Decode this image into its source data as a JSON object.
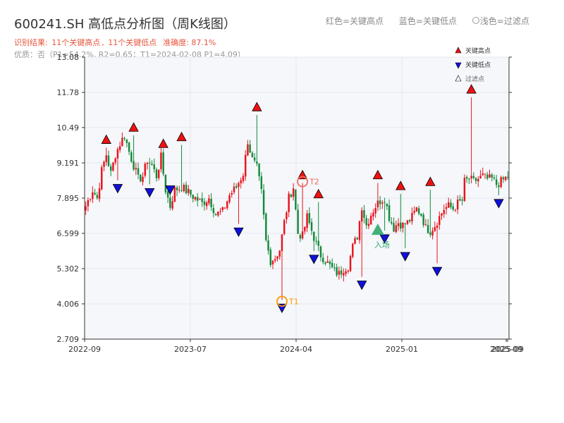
{
  "header": {
    "title": "600241.SH 高低点分析图（周K线图）",
    "summary_prefix": "识别结果: ",
    "summary_highs": "11个关键高点",
    "summary_sep": ", ",
    "summary_lows": "11个关键低点",
    "summary_accuracy": "准确度: 87.1%",
    "quality": "优质：否（P1=54.2%, R2=0.65；T1=2024-02-08 P1=4.09）"
  },
  "top_legend": {
    "red": "红色=关键高点",
    "blue": "蓝色=关键低点",
    "light": "浅色=过滤点"
  },
  "colors": {
    "up": "#e8141e",
    "down": "#138a3b",
    "high_marker": "#ee1111",
    "low_marker": "#1010dd",
    "plot_bg": "#f5f7fa",
    "axis": "#333333",
    "grid": "#e4e7ec",
    "t1": "#ff9800",
    "t2": "#f26b5b",
    "entry": "#2eaa6c"
  },
  "chart_data": {
    "type": "candlestick",
    "title": "600241.SH 高低点分析图（周K线图）",
    "ylim": [
      2.709,
      13.08
    ],
    "yticks": [
      "2.709",
      "4.006",
      "5.302",
      "6.599",
      "7.895",
      "9.191",
      "10.49",
      "11.78",
      "13.08"
    ],
    "xticks": [
      "2022-09",
      "2023-07",
      "2024-04",
      "2025-01",
      "2025-09",
      "2025-09"
    ],
    "grid": true,
    "legend": {
      "position": "top-right",
      "items": [
        {
          "label": "关键高点",
          "symbol": "triangle-up",
          "color": "#ee1111"
        },
        {
          "label": "关键低点",
          "symbol": "triangle-down",
          "color": "#1010dd"
        },
        {
          "label": "过滤点",
          "symbol": "triangle-up-outline",
          "color": "#ffffff"
        }
      ]
    },
    "control_points": [
      [
        0,
        7.6
      ],
      [
        3,
        8.2
      ],
      [
        5,
        7.9
      ],
      [
        7,
        8.9
      ],
      [
        9,
        9.5
      ],
      [
        11,
        8.8
      ],
      [
        13,
        9.5
      ],
      [
        15,
        9.9
      ],
      [
        17,
        10.2
      ],
      [
        19,
        9.6
      ],
      [
        21,
        9.1
      ],
      [
        23,
        8.6
      ],
      [
        25,
        8.7
      ],
      [
        27,
        9.3
      ],
      [
        29,
        9.1
      ],
      [
        31,
        8.7
      ],
      [
        33,
        9.4
      ],
      [
        35,
        8.2
      ],
      [
        37,
        7.6
      ],
      [
        39,
        8.2
      ],
      [
        42,
        8.3
      ],
      [
        45,
        8.1
      ],
      [
        48,
        7.9
      ],
      [
        51,
        7.7
      ],
      [
        54,
        7.9
      ],
      [
        57,
        7.3
      ],
      [
        60,
        7.4
      ],
      [
        63,
        8.0
      ],
      [
        66,
        8.3
      ],
      [
        69,
        8.8
      ],
      [
        71,
        10.0
      ],
      [
        73,
        9.3
      ],
      [
        75,
        9.0
      ],
      [
        77,
        8.1
      ],
      [
        79,
        6.3
      ],
      [
        81,
        5.6
      ],
      [
        83,
        5.7
      ],
      [
        85,
        6.0
      ],
      [
        87,
        7.0
      ],
      [
        89,
        7.9
      ],
      [
        91,
        8.3
      ],
      [
        93,
        6.6
      ],
      [
        95,
        6.5
      ],
      [
        97,
        7.2
      ],
      [
        99,
        6.7
      ],
      [
        101,
        6.2
      ],
      [
        103,
        5.8
      ],
      [
        105,
        5.6
      ],
      [
        107,
        5.4
      ],
      [
        109,
        5.2
      ],
      [
        111,
        5.1
      ],
      [
        113,
        5.3
      ],
      [
        115,
        5.4
      ],
      [
        117,
        6.1
      ],
      [
        119,
        6.5
      ],
      [
        121,
        7.6
      ],
      [
        123,
        6.9
      ],
      [
        125,
        7.3
      ],
      [
        127,
        7.6
      ],
      [
        129,
        7.8
      ],
      [
        131,
        7.9
      ],
      [
        133,
        7.2
      ],
      [
        135,
        6.8
      ],
      [
        137,
        7.0
      ],
      [
        139,
        6.9
      ],
      [
        141,
        7.0
      ],
      [
        143,
        7.2
      ],
      [
        145,
        7.5
      ],
      [
        147,
        7.3
      ],
      [
        149,
        6.8
      ],
      [
        151,
        6.7
      ],
      [
        153,
        6.9
      ],
      [
        155,
        7.2
      ],
      [
        157,
        7.5
      ],
      [
        159,
        7.6
      ],
      [
        161,
        7.5
      ],
      [
        163,
        7.7
      ],
      [
        165,
        7.8
      ],
      [
        166,
        8.5
      ],
      [
        168,
        8.6
      ],
      [
        170,
        8.5
      ],
      [
        172,
        8.6
      ],
      [
        174,
        8.7
      ],
      [
        176,
        8.6
      ],
      [
        178,
        8.6
      ],
      [
        180,
        8.4
      ],
      [
        182,
        8.5
      ],
      [
        185,
        8.7
      ]
    ],
    "pivots": [
      {
        "type": "high",
        "i": 9,
        "price": 9.85
      },
      {
        "type": "low",
        "i": 14,
        "price": 8.45
      },
      {
        "type": "high",
        "i": 21,
        "price": 10.3
      },
      {
        "type": "low",
        "i": 28,
        "price": 8.3
      },
      {
        "type": "high",
        "i": 34,
        "price": 9.7
      },
      {
        "type": "low",
        "i": 37,
        "price": 8.4
      },
      {
        "type": "high",
        "i": 42,
        "price": 9.95
      },
      {
        "type": "low",
        "i": 67,
        "price": 6.85
      },
      {
        "type": "high",
        "i": 75,
        "price": 11.05
      },
      {
        "type": "low",
        "i": 86,
        "price": 4.05
      },
      {
        "type": "high",
        "i": 95,
        "price": 8.55
      },
      {
        "type": "low",
        "i": 100,
        "price": 5.85
      },
      {
        "type": "high",
        "i": 102,
        "price": 7.85
      },
      {
        "type": "low",
        "i": 121,
        "price": 4.9
      },
      {
        "type": "high",
        "i": 128,
        "price": 8.55
      },
      {
        "type": "low",
        "i": 131,
        "price": 6.6
      },
      {
        "type": "high",
        "i": 138,
        "price": 8.15
      },
      {
        "type": "low",
        "i": 140,
        "price": 5.95
      },
      {
        "type": "high",
        "i": 151,
        "price": 8.3
      },
      {
        "type": "low",
        "i": 154,
        "price": 5.4
      },
      {
        "type": "high",
        "i": 169,
        "price": 11.7
      },
      {
        "type": "low",
        "i": 181,
        "price": 7.9
      }
    ],
    "annotations": [
      {
        "label": "T1",
        "i": 86,
        "price": 4.1,
        "kind": "circle"
      },
      {
        "label": "T2",
        "i": 95,
        "price": 8.5,
        "kind": "circle"
      },
      {
        "label": "入场",
        "i": 128,
        "price": 6.7,
        "kind": "triangle"
      }
    ]
  }
}
